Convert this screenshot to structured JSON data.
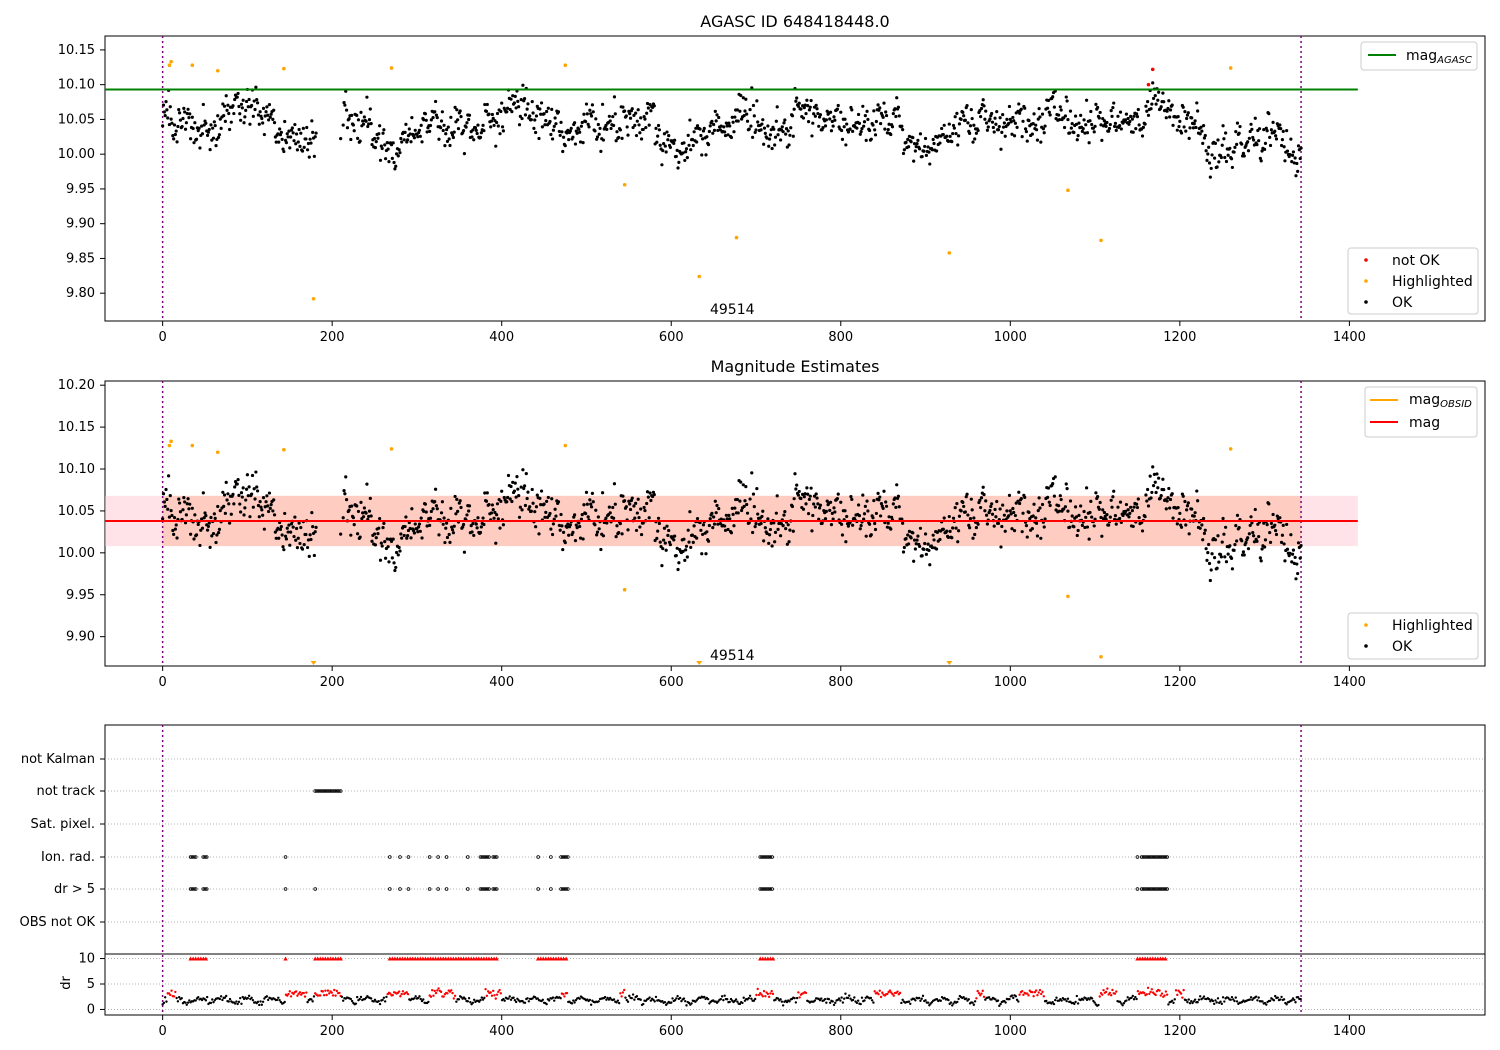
{
  "figure": {
    "panels": [
      {
        "title": "AGASC ID 648418448.0",
        "annotation": "49514",
        "legend_top": [
          {
            "label": "mag",
            "subscript": "AGASC",
            "color": "#008000"
          }
        ],
        "legend_bottom": [
          {
            "label": "not OK",
            "color": "#ff0000"
          },
          {
            "label": "Highlighted",
            "color": "#ffa500"
          },
          {
            "label": "OK",
            "color": "#000000"
          }
        ]
      },
      {
        "title": "Magnitude Estimates",
        "annotation": "49514",
        "legend_top": [
          {
            "label": "mag",
            "subscript": "OBSID",
            "color": "#ffa500"
          },
          {
            "label": "mag",
            "subscript": "",
            "color": "#ff0000"
          }
        ],
        "legend_bottom": [
          {
            "label": "Highlighted",
            "color": "#ffa500"
          },
          {
            "label": "OK",
            "color": "#000000"
          }
        ]
      },
      {
        "title": "",
        "flag_labels": [
          "not Kalman",
          "not track",
          "Sat. pixel.",
          "Ion. rad.",
          "dr > 5",
          "OBS not OK"
        ],
        "ylabel": "dr"
      }
    ]
  },
  "chart_data": [
    {
      "type": "scatter",
      "title": "AGASC ID 648418448.0",
      "xlim": [
        -68,
        1560
      ],
      "xticks": [
        0,
        200,
        400,
        600,
        800,
        1000,
        1200,
        1400
      ],
      "ylim": [
        9.76,
        10.17
      ],
      "yticks": [
        9.8,
        9.85,
        9.9,
        9.95,
        10.0,
        10.05,
        10.1,
        10.15
      ],
      "mag_agasc": 10.093,
      "mag_agasc_xrange": [
        -68,
        1410
      ],
      "vlines": [
        0,
        1343
      ],
      "annotation": {
        "x": 672,
        "y": 9.777,
        "text": "49514"
      },
      "series_ok_base": {
        "x_ranges": [
          [
            0,
            210
          ],
          [
            210,
            1343
          ]
        ],
        "approx_mean": 10.04,
        "approx_spread": 0.04
      },
      "highlighted": [
        {
          "x": 8,
          "y": 10.128
        },
        {
          "x": 10,
          "y": 10.133
        },
        {
          "x": 35,
          "y": 10.128
        },
        {
          "x": 65,
          "y": 10.12
        },
        {
          "x": 143,
          "y": 10.123
        },
        {
          "x": 178,
          "y": 9.792
        },
        {
          "x": 270,
          "y": 10.124
        },
        {
          "x": 475,
          "y": 10.128
        },
        {
          "x": 545,
          "y": 9.956
        },
        {
          "x": 633,
          "y": 9.824
        },
        {
          "x": 677,
          "y": 9.88
        },
        {
          "x": 928,
          "y": 9.858
        },
        {
          "x": 1068,
          "y": 9.948
        },
        {
          "x": 1107,
          "y": 9.876
        },
        {
          "x": 1260,
          "y": 10.124
        }
      ],
      "not_ok": [
        {
          "x": 1163,
          "y": 10.1
        },
        {
          "x": 1168,
          "y": 10.122
        }
      ]
    },
    {
      "type": "scatter",
      "title": "Magnitude Estimates",
      "xlim": [
        -68,
        1560
      ],
      "xticks": [
        0,
        200,
        400,
        600,
        800,
        1000,
        1200,
        1400
      ],
      "ylim": [
        9.865,
        10.205
      ],
      "yticks": [
        9.9,
        9.95,
        10.0,
        10.05,
        10.1,
        10.15,
        10.2
      ],
      "mag": 10.038,
      "band": [
        10.008,
        10.068
      ],
      "band_xrange": [
        -68,
        1410
      ],
      "vlines": [
        0,
        1343
      ],
      "annotation": {
        "x": 672,
        "y": 9.878,
        "text": "49514"
      },
      "highlighted": [
        {
          "x": 8,
          "y": 10.128
        },
        {
          "x": 10,
          "y": 10.133
        },
        {
          "x": 35,
          "y": 10.128
        },
        {
          "x": 65,
          "y": 10.12
        },
        {
          "x": 143,
          "y": 10.123
        },
        {
          "x": 270,
          "y": 10.124
        },
        {
          "x": 475,
          "y": 10.128
        },
        {
          "x": 545,
          "y": 9.956
        },
        {
          "x": 1068,
          "y": 9.948
        },
        {
          "x": 1107,
          "y": 9.876
        },
        {
          "x": 1260,
          "y": 10.124
        }
      ],
      "off_scale_markers": [
        178,
        633,
        928
      ]
    },
    {
      "type": "scatter",
      "xlim": [
        -68,
        1560
      ],
      "xticks": [
        0,
        200,
        400,
        600,
        800,
        1000,
        1200,
        1400
      ],
      "flag_rows": {
        "not Kalman": [],
        "not track": [
          [
            180,
            210
          ]
        ],
        "Sat. pixel.": [],
        "Ion. rad.": [
          [
            33,
            40
          ],
          [
            48,
            52
          ],
          [
            145,
            145
          ],
          [
            268,
            268
          ],
          [
            280,
            280
          ],
          [
            290,
            290
          ],
          [
            315,
            315
          ],
          [
            325,
            325
          ],
          [
            335,
            335
          ],
          [
            360,
            360
          ],
          [
            375,
            385
          ],
          [
            390,
            395
          ],
          [
            443,
            443
          ],
          [
            458,
            458
          ],
          [
            470,
            478
          ],
          [
            705,
            720
          ],
          [
            1150,
            1150
          ],
          [
            1155,
            1185
          ]
        ],
        "dr > 5": [
          [
            33,
            40
          ],
          [
            48,
            52
          ],
          [
            145,
            145
          ],
          [
            180,
            180
          ],
          [
            268,
            268
          ],
          [
            280,
            280
          ],
          [
            290,
            290
          ],
          [
            315,
            315
          ],
          [
            325,
            325
          ],
          [
            335,
            335
          ],
          [
            360,
            360
          ],
          [
            375,
            385
          ],
          [
            390,
            395
          ],
          [
            443,
            443
          ],
          [
            458,
            458
          ],
          [
            470,
            478
          ],
          [
            705,
            720
          ],
          [
            1150,
            1150
          ],
          [
            1155,
            1185
          ]
        ],
        "OBS not OK": []
      },
      "dr_ylim": [
        -0.5,
        10.5
      ],
      "dr_yticks": [
        0,
        5,
        10
      ],
      "dr_capped_ranges": [
        [
          33,
          52
        ],
        [
          145,
          145
        ],
        [
          180,
          210
        ],
        [
          268,
          395
        ],
        [
          443,
          478
        ],
        [
          705,
          720
        ],
        [
          1150,
          1185
        ]
      ],
      "dr_red_ranges": [
        [
          5,
          15
        ],
        [
          145,
          170
        ],
        [
          180,
          210
        ],
        [
          265,
          290
        ],
        [
          315,
          345
        ],
        [
          380,
          400
        ],
        [
          470,
          478
        ],
        [
          540,
          545
        ],
        [
          700,
          720
        ],
        [
          750,
          760
        ],
        [
          840,
          870
        ],
        [
          960,
          970
        ],
        [
          1010,
          1040
        ],
        [
          1105,
          1125
        ],
        [
          1150,
          1185
        ],
        [
          1195,
          1205
        ]
      ],
      "vlines": [
        0,
        1343
      ]
    }
  ]
}
